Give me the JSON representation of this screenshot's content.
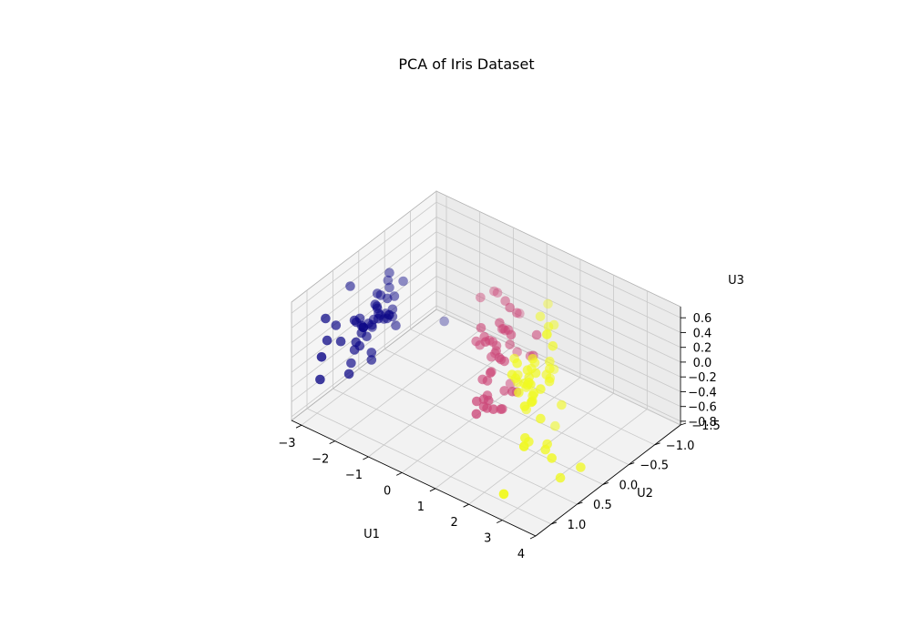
{
  "chart_data": {
    "type": "scatter",
    "projection": "3d",
    "title": "PCA of Iris Dataset",
    "xlabel": "U1",
    "ylabel": "U2",
    "zlabel": "U3",
    "xlim": [
      -3.3,
      4.0
    ],
    "ylim": [
      -1.5,
      1.3
    ],
    "zlim": [
      -0.85,
      0.75
    ],
    "xticks": [
      -3,
      -2,
      -1,
      0,
      1,
      2,
      3,
      4
    ],
    "yticks": [
      -1.5,
      -1.0,
      -0.5,
      0.0,
      0.5,
      1.0
    ],
    "zticks": [
      -0.8,
      -0.6,
      -0.4,
      -0.2,
      0.0,
      0.2,
      0.4,
      0.6
    ],
    "xtick_labels": [
      "−3",
      "−2",
      "−1",
      "0",
      "1",
      "2",
      "3",
      "4"
    ],
    "ytick_labels": [
      "−1.5",
      "−1.0",
      "−0.5",
      "0.0",
      "0.5",
      "1.0"
    ],
    "ztick_labels": [
      "−0.8",
      "−0.6",
      "−0.4",
      "−0.2",
      "0.0",
      "0.2",
      "0.4",
      "0.6"
    ],
    "grid": true,
    "colormap": "plasma",
    "series": [
      {
        "color": "#0d0887",
        "points": [
          [
            -2.7,
            0.3,
            0.0
          ],
          [
            -2.7,
            -0.2,
            -0.1
          ],
          [
            -2.9,
            -0.1,
            0.0
          ],
          [
            -2.7,
            -0.3,
            0.1
          ],
          [
            -2.7,
            0.3,
            0.0
          ],
          [
            -2.3,
            0.7,
            0.1
          ],
          [
            -2.8,
            -0.1,
            0.2
          ],
          [
            -2.6,
            0.2,
            0.0
          ],
          [
            -2.9,
            -0.6,
            0.1
          ],
          [
            -2.7,
            -0.1,
            -0.1
          ],
          [
            -2.5,
            0.6,
            -0.1
          ],
          [
            -2.6,
            0.1,
            0.2
          ],
          [
            -2.8,
            -0.2,
            -0.1
          ],
          [
            -3.2,
            -0.5,
            0.1
          ],
          [
            -2.6,
            1.2,
            -0.2
          ],
          [
            -2.4,
            1.3,
            0.2
          ],
          [
            -2.6,
            0.8,
            0.1
          ],
          [
            -2.7,
            0.3,
            0.0
          ],
          [
            -2.2,
            0.9,
            -0.2
          ],
          [
            -2.6,
            0.5,
            0.2
          ],
          [
            -2.3,
            0.4,
            -0.3
          ],
          [
            -2.6,
            0.4,
            0.1
          ],
          [
            -3.4,
            0.1,
            0.3
          ],
          [
            -2.3,
            0.1,
            0.1
          ],
          [
            -2.5,
            0.2,
            0.3
          ],
          [
            -2.5,
            -0.2,
            -0.2
          ],
          [
            -2.5,
            0.1,
            0.1
          ],
          [
            -2.6,
            0.4,
            0.0
          ],
          [
            -2.6,
            0.3,
            -0.1
          ],
          [
            -2.6,
            -0.1,
            0.2
          ],
          [
            -2.6,
            -0.2,
            0.0
          ],
          [
            -2.3,
            0.4,
            -0.2
          ],
          [
            -2.9,
            0.9,
            0.4
          ],
          [
            -2.7,
            1.0,
            0.2
          ],
          [
            -2.6,
            -0.2,
            -0.1
          ],
          [
            -2.9,
            0.0,
            -0.2
          ],
          [
            -2.6,
            0.6,
            -0.3
          ],
          [
            -2.9,
            0.7,
            0.2
          ],
          [
            -3.0,
            -0.4,
            0.1
          ],
          [
            -2.7,
            0.2,
            0.0
          ],
          [
            -2.8,
            0.3,
            0.1
          ],
          [
            -2.6,
            -1.2,
            -0.7
          ],
          [
            -3.0,
            -0.4,
            0.3
          ],
          [
            -2.4,
            0.2,
            0.2
          ],
          [
            -2.1,
            0.4,
            0.3
          ],
          [
            -2.7,
            -0.2,
            -0.1
          ],
          [
            -2.5,
            0.6,
            0.3
          ],
          [
            -2.9,
            -0.1,
            0.2
          ],
          [
            -2.5,
            0.5,
            -0.1
          ],
          [
            -2.7,
            0.1,
            0.0
          ]
        ]
      },
      {
        "color": "#cc4778",
        "points": [
          [
            1.3,
            0.7,
            -0.1
          ],
          [
            0.9,
            0.3,
            -0.3
          ],
          [
            1.5,
            0.5,
            -0.1
          ],
          [
            0.2,
            -0.8,
            -0.3
          ],
          [
            1.1,
            0.1,
            -0.4
          ],
          [
            0.6,
            -0.4,
            0.1
          ],
          [
            1.1,
            0.3,
            0.2
          ],
          [
            -0.8,
            -1.0,
            0.2
          ],
          [
            1.0,
            0.3,
            -0.3
          ],
          [
            0.0,
            -0.7,
            0.4
          ],
          [
            -0.5,
            -1.3,
            -0.2
          ],
          [
            0.5,
            -0.2,
            0.1
          ],
          [
            0.3,
            -0.6,
            -0.6
          ],
          [
            0.9,
            -0.1,
            0.1
          ],
          [
            -0.1,
            -0.2,
            0.1
          ],
          [
            1.0,
            0.5,
            -0.1
          ],
          [
            0.6,
            -0.2,
            0.5
          ],
          [
            0.2,
            -0.3,
            -0.3
          ],
          [
            0.9,
            -0.6,
            -0.1
          ],
          [
            0.0,
            -0.5,
            -0.2
          ],
          [
            1.1,
            -0.1,
            0.5
          ],
          [
            0.4,
            0.0,
            -0.2
          ],
          [
            1.3,
            -0.4,
            0.1
          ],
          [
            0.9,
            -0.1,
            -0.3
          ],
          [
            0.7,
            0.1,
            -0.3
          ],
          [
            0.9,
            0.3,
            -0.2
          ],
          [
            1.3,
            0.2,
            -0.3
          ],
          [
            1.6,
            0.2,
            0.0
          ],
          [
            0.8,
            -0.1,
            0.1
          ],
          [
            -0.3,
            -0.4,
            -0.1
          ],
          [
            0.0,
            -0.7,
            0.0
          ],
          [
            -0.1,
            -0.7,
            0.0
          ],
          [
            0.2,
            -0.3,
            -0.1
          ],
          [
            1.4,
            -0.4,
            0.4
          ],
          [
            0.6,
            -0.4,
            0.6
          ],
          [
            0.8,
            0.2,
            0.5
          ],
          [
            1.2,
            0.4,
            -0.1
          ],
          [
            0.8,
            -0.4,
            -0.5
          ],
          [
            0.2,
            -0.1,
            0.4
          ],
          [
            0.1,
            -0.6,
            0.1
          ],
          [
            0.5,
            -0.6,
            0.4
          ],
          [
            0.9,
            0.0,
            0.2
          ],
          [
            0.2,
            -0.4,
            0.0
          ],
          [
            -0.7,
            -1.0,
            0.2
          ],
          [
            0.4,
            -0.5,
            0.2
          ],
          [
            0.3,
            -0.1,
            0.3
          ],
          [
            0.4,
            -0.2,
            0.2
          ],
          [
            0.7,
            0.1,
            -0.1
          ],
          [
            -0.9,
            -0.8,
            0.2
          ],
          [
            0.3,
            -0.2,
            0.2
          ]
        ]
      },
      {
        "color": "#f0f921",
        "points": [
          [
            2.5,
            0.0,
            0.7
          ],
          [
            1.4,
            -0.6,
            0.3
          ],
          [
            2.6,
            0.3,
            -0.1
          ],
          [
            2.0,
            -0.2,
            0.1
          ],
          [
            2.4,
            0.0,
            0.2
          ],
          [
            3.4,
            0.6,
            -0.3
          ],
          [
            0.5,
            -1.2,
            0.2
          ],
          [
            2.9,
            0.4,
            -0.4
          ],
          [
            2.3,
            -0.3,
            -0.3
          ],
          [
            2.9,
            0.8,
            0.4
          ],
          [
            1.7,
            0.2,
            0.2
          ],
          [
            1.8,
            -0.4,
            -0.1
          ],
          [
            2.2,
            0.2,
            0.0
          ],
          [
            1.3,
            -0.8,
            0.3
          ],
          [
            1.6,
            -0.5,
            0.5
          ],
          [
            1.9,
            0.1,
            0.3
          ],
          [
            1.9,
            0.0,
            -0.1
          ],
          [
            3.5,
            1.2,
            0.2
          ],
          [
            3.8,
            0.3,
            -0.5
          ],
          [
            1.3,
            -0.8,
            -0.3
          ],
          [
            2.4,
            0.3,
            0.2
          ],
          [
            1.2,
            -0.6,
            0.5
          ],
          [
            3.5,
            0.5,
            -0.6
          ],
          [
            1.4,
            -0.2,
            -0.2
          ],
          [
            2.3,
            0.3,
            0.3
          ],
          [
            2.6,
            0.6,
            -0.2
          ],
          [
            1.3,
            -0.1,
            -0.1
          ],
          [
            1.3,
            -0.1,
            0.0
          ],
          [
            2.1,
            -0.2,
            0.2
          ],
          [
            2.4,
            0.4,
            -0.4
          ],
          [
            2.8,
            0.3,
            -0.4
          ],
          [
            3.2,
            1.4,
            -0.4
          ],
          [
            2.1,
            -0.2,
            0.3
          ],
          [
            1.4,
            -0.2,
            -0.5
          ],
          [
            1.8,
            -0.5,
            -0.8
          ],
          [
            3.1,
            0.8,
            0.5
          ],
          [
            2.1,
            0.2,
            0.3
          ],
          [
            1.9,
            0.1,
            0.1
          ],
          [
            1.2,
            -0.1,
            0.2
          ],
          [
            2.1,
            0.4,
            0.2
          ],
          [
            2.3,
            0.2,
            0.4
          ],
          [
            1.9,
            0.4,
            0.4
          ],
          [
            1.4,
            -0.6,
            0.3
          ],
          [
            2.6,
            0.3,
            0.3
          ],
          [
            2.4,
            0.4,
            0.4
          ],
          [
            1.9,
            0.3,
            0.5
          ],
          [
            1.5,
            -0.3,
            0.1
          ],
          [
            1.8,
            0.1,
            0.1
          ],
          [
            1.9,
            0.0,
            0.4
          ],
          [
            1.4,
            -0.3,
            0.0
          ]
        ]
      }
    ]
  }
}
